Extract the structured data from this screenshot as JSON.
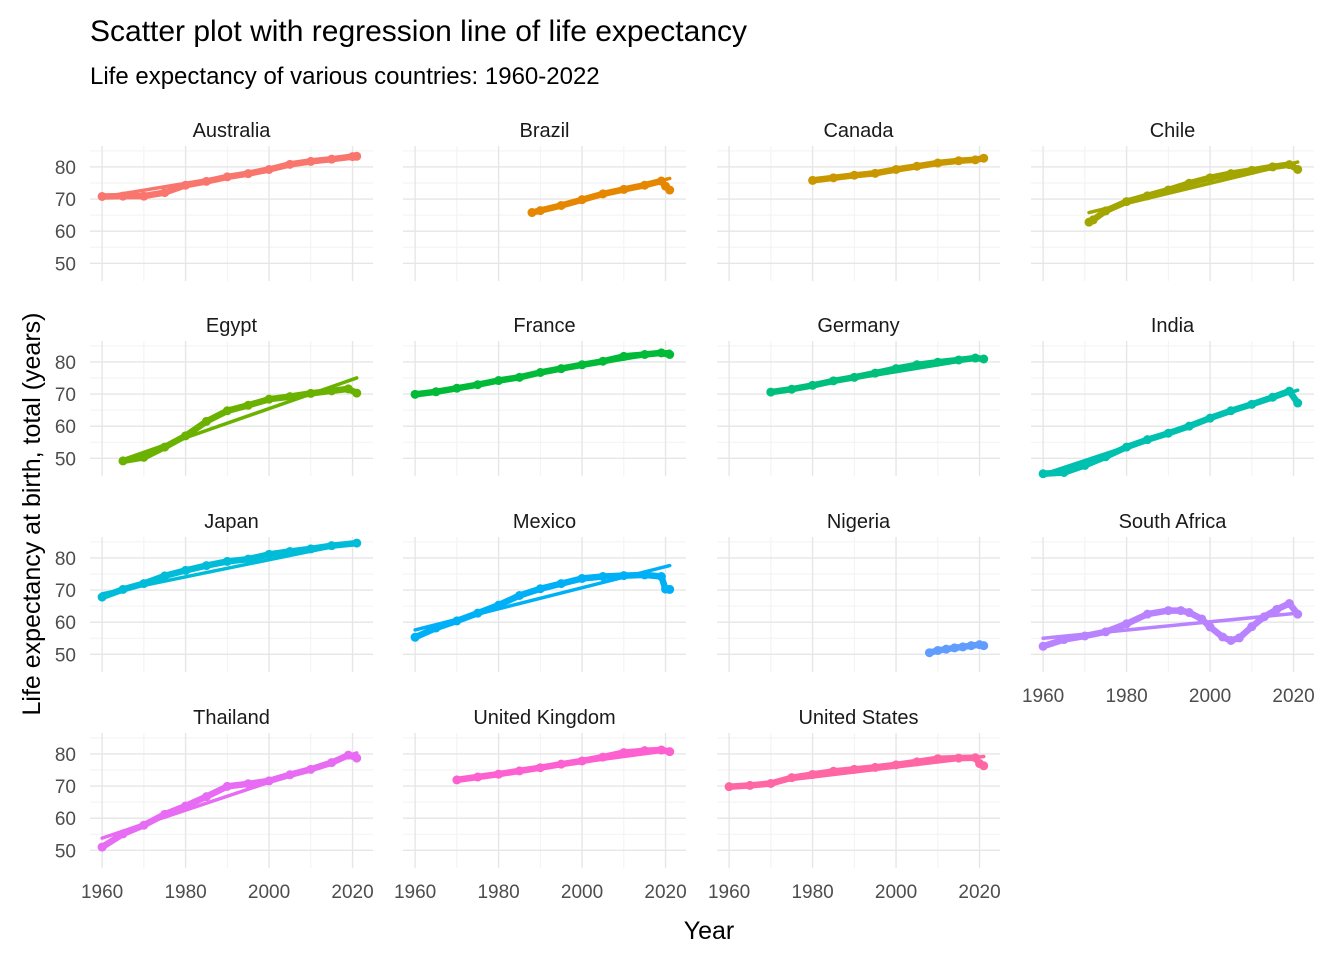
{
  "chart_data": {
    "type": "scatter",
    "title": "Scatter plot with regression line of life expectancy",
    "subtitle": "Life expectancy of various countries: 1960-2022",
    "xlabel": "Year",
    "ylabel": "Life expectancy at birth, total (years)",
    "xlim": [
      1960,
      2022
    ],
    "ylim": [
      45,
      86
    ],
    "x_ticks": [
      1960,
      1980,
      2000,
      2020
    ],
    "y_ticks": [
      50,
      60,
      70,
      80
    ],
    "grid": true,
    "legend": "none",
    "facets": [
      {
        "name": "Australia",
        "color": "#F8766D",
        "points": [
          [
            1960,
            70.8
          ],
          [
            1965,
            70.9
          ],
          [
            1970,
            70.9
          ],
          [
            1975,
            72.0
          ],
          [
            1980,
            74.3
          ],
          [
            1985,
            75.5
          ],
          [
            1990,
            76.9
          ],
          [
            1995,
            77.9
          ],
          [
            2000,
            79.2
          ],
          [
            2005,
            80.8
          ],
          [
            2010,
            81.7
          ],
          [
            2015,
            82.4
          ],
          [
            2020,
            83.2
          ],
          [
            2021,
            83.3
          ]
        ],
        "trend": [
          [
            1960,
            70.6
          ],
          [
            2021,
            83.7
          ]
        ]
      },
      {
        "name": "Brazil",
        "color": "#E58700",
        "points": [
          [
            1988,
            65.8
          ],
          [
            1990,
            66.4
          ],
          [
            1995,
            68.0
          ],
          [
            2000,
            69.8
          ],
          [
            2005,
            71.6
          ],
          [
            2010,
            73.0
          ],
          [
            2015,
            74.3
          ],
          [
            2019,
            75.6
          ],
          [
            2020,
            74.0
          ],
          [
            2021,
            72.8
          ]
        ],
        "trend": [
          [
            1988,
            65.9
          ],
          [
            2021,
            76.4
          ]
        ]
      },
      {
        "name": "Canada",
        "color": "#C99800",
        "points": [
          [
            1980,
            75.8
          ],
          [
            1985,
            76.6
          ],
          [
            1990,
            77.4
          ],
          [
            1995,
            78.0
          ],
          [
            2000,
            79.2
          ],
          [
            2005,
            80.2
          ],
          [
            2010,
            81.2
          ],
          [
            2015,
            81.9
          ],
          [
            2019,
            82.2
          ],
          [
            2021,
            82.7
          ]
        ],
        "trend": [
          [
            1980,
            76.0
          ],
          [
            2021,
            82.9
          ]
        ]
      },
      {
        "name": "Chile",
        "color": "#A3A500",
        "points": [
          [
            1971,
            62.8
          ],
          [
            1972,
            63.5
          ],
          [
            1975,
            66.3
          ],
          [
            1980,
            69.2
          ],
          [
            1985,
            71.0
          ],
          [
            1990,
            72.8
          ],
          [
            1995,
            74.9
          ],
          [
            2000,
            76.6
          ],
          [
            2005,
            77.9
          ],
          [
            2010,
            78.9
          ],
          [
            2015,
            80.0
          ],
          [
            2019,
            80.7
          ],
          [
            2021,
            79.2
          ]
        ],
        "trend": [
          [
            1971,
            65.8
          ],
          [
            2021,
            81.5
          ]
        ]
      },
      {
        "name": "Egypt",
        "color": "#6BB100",
        "points": [
          [
            1965,
            49.2
          ],
          [
            1970,
            50.3
          ],
          [
            1975,
            53.5
          ],
          [
            1980,
            57.0
          ],
          [
            1985,
            61.5
          ],
          [
            1990,
            64.8
          ],
          [
            1995,
            66.5
          ],
          [
            2000,
            68.4
          ],
          [
            2005,
            69.2
          ],
          [
            2010,
            70.2
          ],
          [
            2015,
            71.0
          ],
          [
            2019,
            71.6
          ],
          [
            2021,
            70.3
          ]
        ],
        "trend": [
          [
            1965,
            49.6
          ],
          [
            2021,
            75.0
          ]
        ]
      },
      {
        "name": "France",
        "color": "#00BA38",
        "points": [
          [
            1960,
            69.9
          ],
          [
            1965,
            70.7
          ],
          [
            1970,
            71.8
          ],
          [
            1975,
            72.9
          ],
          [
            1980,
            74.2
          ],
          [
            1985,
            75.2
          ],
          [
            1990,
            76.7
          ],
          [
            1995,
            77.9
          ],
          [
            2000,
            79.1
          ],
          [
            2005,
            80.2
          ],
          [
            2010,
            81.7
          ],
          [
            2015,
            82.3
          ],
          [
            2019,
            82.8
          ],
          [
            2021,
            82.3
          ]
        ],
        "trend": [
          [
            1960,
            69.8
          ],
          [
            2021,
            83.3
          ]
        ]
      },
      {
        "name": "Germany",
        "color": "#00BF7D",
        "points": [
          [
            1970,
            70.6
          ],
          [
            1975,
            71.5
          ],
          [
            1980,
            72.7
          ],
          [
            1985,
            74.1
          ],
          [
            1990,
            75.2
          ],
          [
            1995,
            76.5
          ],
          [
            2000,
            77.9
          ],
          [
            2005,
            79.1
          ],
          [
            2010,
            79.9
          ],
          [
            2015,
            80.6
          ],
          [
            2019,
            81.2
          ],
          [
            2021,
            80.9
          ]
        ],
        "trend": [
          [
            1970,
            70.6
          ],
          [
            2021,
            81.4
          ]
        ]
      },
      {
        "name": "India",
        "color": "#00C0AF",
        "points": [
          [
            1960,
            45.2
          ],
          [
            1965,
            45.6
          ],
          [
            1970,
            47.8
          ],
          [
            1975,
            50.5
          ],
          [
            1980,
            53.5
          ],
          [
            1985,
            55.8
          ],
          [
            1990,
            57.8
          ],
          [
            1995,
            60.0
          ],
          [
            2000,
            62.5
          ],
          [
            2005,
            64.8
          ],
          [
            2010,
            66.8
          ],
          [
            2015,
            69.0
          ],
          [
            2019,
            70.9
          ],
          [
            2021,
            67.2
          ]
        ],
        "trend": [
          [
            1960,
            45.0
          ],
          [
            2021,
            71.2
          ]
        ]
      },
      {
        "name": "Japan",
        "color": "#00BCD8",
        "points": [
          [
            1960,
            67.8
          ],
          [
            1965,
            70.2
          ],
          [
            1970,
            72.0
          ],
          [
            1975,
            74.4
          ],
          [
            1980,
            76.1
          ],
          [
            1985,
            77.6
          ],
          [
            1990,
            78.9
          ],
          [
            1995,
            79.6
          ],
          [
            2000,
            81.1
          ],
          [
            2005,
            82.0
          ],
          [
            2010,
            82.8
          ],
          [
            2015,
            83.8
          ],
          [
            2021,
            84.6
          ]
        ],
        "trend": [
          [
            1960,
            68.8
          ],
          [
            2021,
            85.0
          ]
        ]
      },
      {
        "name": "Mexico",
        "color": "#00B0F6",
        "points": [
          [
            1960,
            55.3
          ],
          [
            1965,
            58.2
          ],
          [
            1970,
            60.4
          ],
          [
            1975,
            62.8
          ],
          [
            1980,
            65.3
          ],
          [
            1985,
            68.3
          ],
          [
            1990,
            70.4
          ],
          [
            1995,
            72.0
          ],
          [
            2000,
            73.6
          ],
          [
            2005,
            74.2
          ],
          [
            2010,
            74.5
          ],
          [
            2015,
            74.7
          ],
          [
            2019,
            74.2
          ],
          [
            2020,
            70.3
          ],
          [
            2021,
            70.2
          ]
        ],
        "trend": [
          [
            1960,
            57.6
          ],
          [
            2021,
            77.6
          ]
        ]
      },
      {
        "name": "Nigeria",
        "color": "#619CFF",
        "points": [
          [
            2008,
            50.5
          ],
          [
            2010,
            51.2
          ],
          [
            2012,
            51.6
          ],
          [
            2014,
            52.0
          ],
          [
            2016,
            52.3
          ],
          [
            2018,
            52.7
          ],
          [
            2020,
            53.0
          ],
          [
            2021,
            52.7
          ]
        ],
        "trend": [
          [
            2008,
            50.6
          ],
          [
            2021,
            53.1
          ]
        ]
      },
      {
        "name": "South Africa",
        "color": "#B983FF",
        "points": [
          [
            1960,
            52.5
          ],
          [
            1965,
            54.6
          ],
          [
            1970,
            55.7
          ],
          [
            1975,
            57.0
          ],
          [
            1980,
            59.5
          ],
          [
            1985,
            62.5
          ],
          [
            1990,
            63.6
          ],
          [
            1993,
            63.6
          ],
          [
            1995,
            63.0
          ],
          [
            1998,
            61.0
          ],
          [
            2000,
            58.5
          ],
          [
            2003,
            55.4
          ],
          [
            2005,
            54.3
          ],
          [
            2007,
            55.1
          ],
          [
            2010,
            58.6
          ],
          [
            2013,
            61.7
          ],
          [
            2016,
            64.0
          ],
          [
            2019,
            65.8
          ],
          [
            2021,
            62.5
          ]
        ],
        "trend": [
          [
            1960,
            55.0
          ],
          [
            2021,
            62.8
          ]
        ]
      },
      {
        "name": "Thailand",
        "color": "#E76BF3",
        "points": [
          [
            1960,
            51.0
          ],
          [
            1965,
            55.1
          ],
          [
            1970,
            57.8
          ],
          [
            1975,
            61.2
          ],
          [
            1980,
            63.8
          ],
          [
            1985,
            66.7
          ],
          [
            1990,
            69.9
          ],
          [
            1995,
            70.7
          ],
          [
            2000,
            71.6
          ],
          [
            2005,
            73.5
          ],
          [
            2010,
            75.2
          ],
          [
            2015,
            77.3
          ],
          [
            2019,
            79.6
          ],
          [
            2021,
            78.7
          ]
        ],
        "trend": [
          [
            1960,
            53.8
          ],
          [
            2021,
            80.3
          ]
        ]
      },
      {
        "name": "United Kingdom",
        "color": "#FD61D1",
        "points": [
          [
            1970,
            71.9
          ],
          [
            1975,
            72.8
          ],
          [
            1980,
            73.7
          ],
          [
            1985,
            74.7
          ],
          [
            1990,
            75.7
          ],
          [
            1995,
            76.8
          ],
          [
            2000,
            77.8
          ],
          [
            2005,
            79.0
          ],
          [
            2010,
            80.4
          ],
          [
            2015,
            81.0
          ],
          [
            2019,
            81.2
          ],
          [
            2021,
            80.7
          ]
        ],
        "trend": [
          [
            1970,
            72.2
          ],
          [
            2021,
            81.1
          ]
        ]
      },
      {
        "name": "United States",
        "color": "#FF67A4",
        "points": [
          [
            1960,
            69.8
          ],
          [
            1965,
            70.2
          ],
          [
            1970,
            70.8
          ],
          [
            1975,
            72.6
          ],
          [
            1980,
            73.6
          ],
          [
            1985,
            74.6
          ],
          [
            1990,
            75.2
          ],
          [
            1995,
            75.8
          ],
          [
            2000,
            76.6
          ],
          [
            2005,
            77.5
          ],
          [
            2010,
            78.5
          ],
          [
            2015,
            78.7
          ],
          [
            2019,
            78.8
          ],
          [
            2020,
            77.0
          ],
          [
            2021,
            76.3
          ]
        ],
        "trend": [
          [
            1960,
            69.7
          ],
          [
            2021,
            79.2
          ]
        ]
      }
    ]
  }
}
